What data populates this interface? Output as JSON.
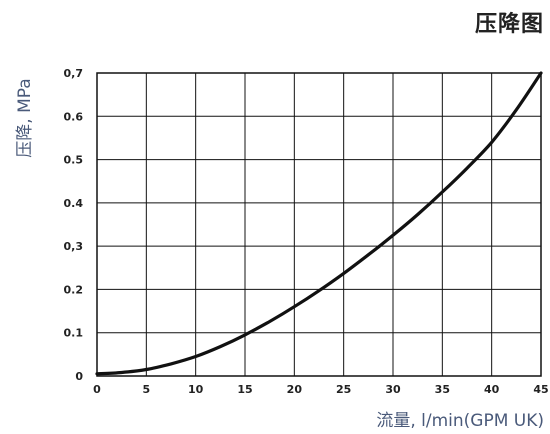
{
  "chart_data": {
    "type": "line",
    "title": "压降图",
    "xlabel": "流量, l/min(GPM UK)",
    "ylabel": "压降, MPa",
    "xlim": [
      0,
      45
    ],
    "ylim": [
      0,
      0.7
    ],
    "x_ticks": [
      0,
      5,
      10,
      15,
      20,
      25,
      30,
      35,
      40,
      45
    ],
    "x_tick_labels": [
      "0",
      "5",
      "10",
      "15",
      "20",
      "25",
      "30",
      "35",
      "40",
      "45"
    ],
    "y_ticks": [
      0,
      0.1,
      0.2,
      0.3,
      0.4,
      0.5,
      0.6,
      0.7
    ],
    "y_tick_labels": [
      "0",
      "0.1",
      "0.2",
      "0,3",
      "0.4",
      "0.5",
      "0.6",
      "0,7"
    ],
    "grid": true,
    "series": [
      {
        "x": [
          0,
          2.5,
          5,
          7.5,
          10,
          12.5,
          15,
          17.5,
          20,
          22.5,
          25,
          27.5,
          30,
          32.5,
          35,
          37.5,
          40,
          42.5,
          45
        ],
        "values": [
          0.005,
          0.008,
          0.015,
          0.028,
          0.045,
          0.068,
          0.095,
          0.126,
          0.16,
          0.197,
          0.237,
          0.28,
          0.325,
          0.373,
          0.425,
          0.48,
          0.54,
          0.615,
          0.7
        ],
        "color": "#111111"
      }
    ]
  }
}
